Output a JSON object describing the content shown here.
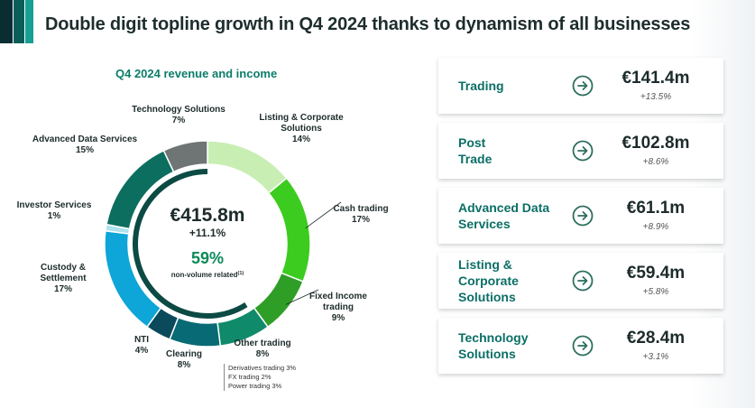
{
  "header": {
    "title": "Double digit topline growth in Q4 2024 thanks to dynamism of all businesses",
    "brand_colors": [
      "#0a2d32",
      "#0b5d5a",
      "#18a094"
    ]
  },
  "chart_data": {
    "type": "pie",
    "title": "Q4 2024 revenue and income",
    "center": {
      "total": "€415.8m",
      "growth": "+11.1%",
      "share": "59%",
      "share_label": "non-volume related",
      "footnote_marker": "(1)"
    },
    "slices": [
      {
        "name": "Listing & Corporate Solutions",
        "label_lines": [
          "Listing & Corporate",
          "Solutions"
        ],
        "pct_label": "14%",
        "value": 14,
        "color": "#c8eeb4"
      },
      {
        "name": "Cash trading",
        "label_lines": [
          "Cash trading"
        ],
        "pct_label": "17%",
        "value": 17,
        "color": "#3ccc1f"
      },
      {
        "name": "Fixed Income trading",
        "label_lines": [
          "Fixed Income",
          "trading"
        ],
        "pct_label": "9%",
        "value": 9,
        "color": "#2f9e27"
      },
      {
        "name": "Other trading",
        "label_lines": [
          "Other trading"
        ],
        "pct_label": "8%",
        "value": 8,
        "color": "#0f8a6a"
      },
      {
        "name": "Clearing",
        "label_lines": [
          "Clearing"
        ],
        "pct_label": "8%",
        "value": 8,
        "color": "#086a74"
      },
      {
        "name": "NTI",
        "label_lines": [
          "NTI"
        ],
        "pct_label": "4%",
        "value": 4,
        "color": "#0a4a5a"
      },
      {
        "name": "Custody & Settlement",
        "label_lines": [
          "Custody &",
          "Settlement"
        ],
        "pct_label": "17%",
        "value": 17,
        "color": "#0ea5d8"
      },
      {
        "name": "Investor Services",
        "label_lines": [
          "Investor Services"
        ],
        "pct_label": "1%",
        "value": 1,
        "color": "#aee2ee"
      },
      {
        "name": "Advanced Data Services",
        "label_lines": [
          "Advanced Data Services"
        ],
        "pct_label": "15%",
        "value": 15,
        "color": "#0b6e5f"
      },
      {
        "name": "Technology Solutions",
        "label_lines": [
          "Technology Solutions"
        ],
        "pct_label": "7%",
        "value": 7,
        "color": "#6f7474"
      }
    ],
    "other_trading_breakdown": [
      "Derivatives trading 3%",
      "FX trading 2%",
      "Power trading 3%"
    ]
  },
  "cards": [
    {
      "label_lines": [
        "Trading"
      ],
      "value": "€141.4m",
      "growth": "+13.5%"
    },
    {
      "label_lines": [
        "Post",
        "Trade"
      ],
      "value": "€102.8m",
      "growth": "+8.6%"
    },
    {
      "label_lines": [
        "Advanced Data",
        "Services"
      ],
      "value": "€61.1m",
      "growth": "+8.9%"
    },
    {
      "label_lines": [
        "Listing &",
        "Corporate",
        "Solutions"
      ],
      "value": "€59.4m",
      "growth": "+5.8%"
    },
    {
      "label_lines": [
        "Technology",
        "Solutions"
      ],
      "value": "€28.4m",
      "growth": "+3.1%"
    }
  ],
  "icons": {
    "card_arrow": "arrow-right-circle-icon"
  },
  "colors": {
    "accent_green": "#0b8a5a",
    "card_label": "#0b6f66",
    "arrow": "#2d6e5e"
  }
}
